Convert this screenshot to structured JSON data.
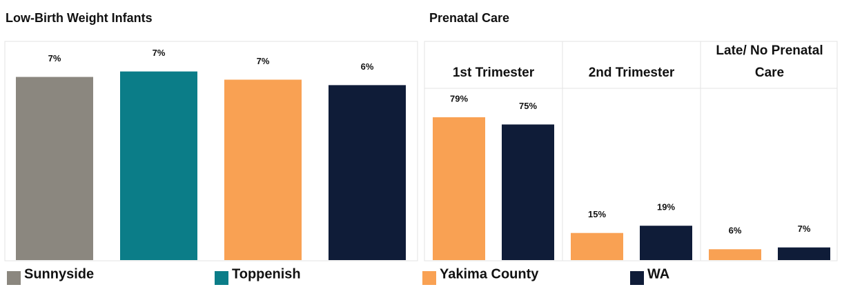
{
  "chart_data": [
    {
      "type": "bar",
      "title": "Low-Birth Weight Infants",
      "categories": [
        "Sunnyside",
        "Toppenish",
        "Yakima County",
        "WA"
      ],
      "values": [
        6.7,
        6.9,
        6.6,
        6.4
      ],
      "value_labels": [
        "7%",
        "7%",
        "7%",
        "6%"
      ],
      "colors": [
        "#8b877f",
        "#0b7d88",
        "#f9a153",
        "#0f1c38"
      ],
      "ylim": [
        0,
        8
      ]
    },
    {
      "type": "grouped_bar",
      "title": "Prenatal Care",
      "categories": [
        "1st Trimester",
        "2nd Trimester",
        "Late/ No Prenatal Care"
      ],
      "series": [
        {
          "name": "Yakima County",
          "color": "#f9a153",
          "values": [
            79,
            15,
            6
          ],
          "value_labels": [
            "79%",
            "15%",
            "6%"
          ]
        },
        {
          "name": "WA",
          "color": "#0f1c38",
          "values": [
            75,
            19,
            7
          ],
          "value_labels": [
            "75%",
            "19%",
            "7%"
          ]
        }
      ],
      "ylim": [
        0,
        95
      ]
    }
  ]
}
